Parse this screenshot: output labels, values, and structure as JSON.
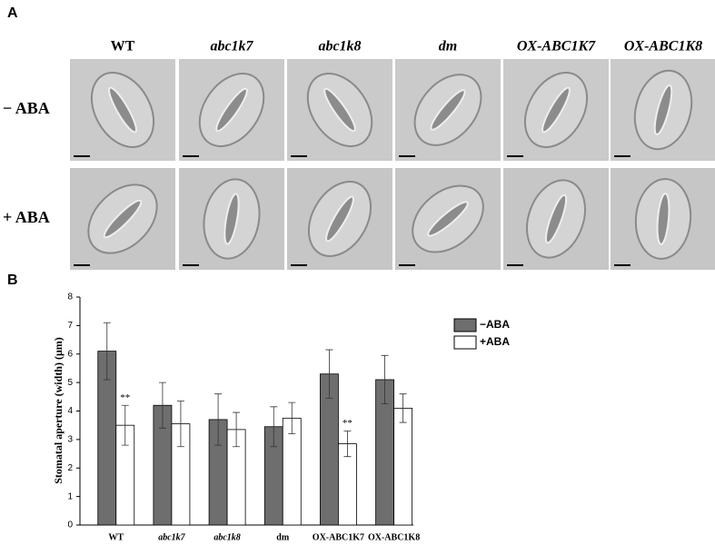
{
  "panel_a": {
    "label": "A",
    "columns": [
      "WT",
      "abc1k7",
      "abc1k8",
      "dm",
      "OX-ABC1K7",
      "OX-ABC1K8"
    ],
    "rows": [
      "− ABA",
      "+ ABA"
    ]
  },
  "panel_b": {
    "label": "B"
  },
  "chart_data": {
    "type": "bar",
    "y_label": "Stomatal aperture (width) (μm)",
    "categories": [
      "WT",
      "abc1k7",
      "abc1k8",
      "dm",
      "OX-ABC1K7",
      "OX-ABC1K8"
    ],
    "series": [
      {
        "name": "−ABA",
        "color": "#6e6e6e",
        "values": [
          6.1,
          4.2,
          3.7,
          3.45,
          5.3,
          5.1
        ],
        "errors": [
          1.0,
          0.8,
          0.9,
          0.7,
          0.85,
          0.85
        ]
      },
      {
        "name": "+ABA",
        "color": "#ffffff",
        "values": [
          3.5,
          3.55,
          3.35,
          3.75,
          2.85,
          4.1
        ],
        "errors": [
          0.7,
          0.8,
          0.6,
          0.55,
          0.45,
          0.5
        ]
      }
    ],
    "annotations": [
      {
        "text": "**",
        "category": "WT",
        "series": "+ABA"
      },
      {
        "text": "**",
        "category": "OX-ABC1K7",
        "series": "+ABA"
      }
    ],
    "ylim": [
      0,
      8
    ],
    "yticks": [
      0,
      1,
      2,
      3,
      4,
      5,
      6,
      7,
      8
    ],
    "legend": "right"
  }
}
